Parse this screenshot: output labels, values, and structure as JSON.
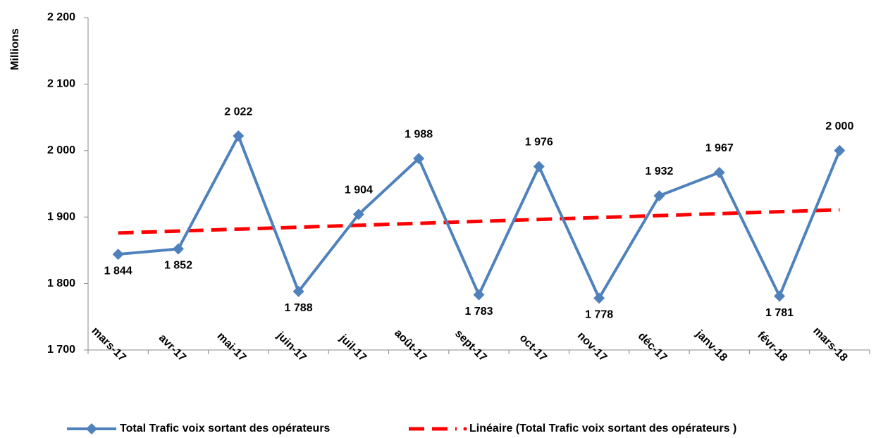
{
  "chart_data": {
    "type": "line",
    "y_label": "Millions",
    "categories": [
      "mars-17",
      "avr-17",
      "mai-17",
      "juin-17",
      "juil-17",
      "août-17",
      "sept-17",
      "oct-17",
      "nov-17",
      "déc-17",
      "janv-18",
      "févr-18",
      "mars-18"
    ],
    "series": [
      {
        "name": "Total Trafic voix sortant des opérateurs",
        "color": "#4f81bd",
        "values": [
          1844,
          1852,
          2022,
          1788,
          1904,
          1988,
          1783,
          1976,
          1778,
          1932,
          1967,
          1781,
          2000
        ],
        "value_labels": [
          "1 844",
          "1 852",
          "2 022",
          "1 788",
          "1 904",
          "1 988",
          "1 783",
          "1 976",
          "1 778",
          "1 932",
          "1 967",
          "1 781",
          "2 000"
        ]
      },
      {
        "name": "Linéaire (Total Trafic voix sortant des opérateurs )",
        "color": "#ff0000",
        "dashed": true,
        "values": [
          1876.0,
          1878.9,
          1881.8,
          1884.7,
          1887.6,
          1890.5,
          1893.5,
          1896.4,
          1899.3,
          1902.2,
          1905.1,
          1908.0,
          1910.9
        ]
      }
    ],
    "ylim": [
      1700,
      2200
    ],
    "yticks": [
      {
        "value": 1700,
        "label": "1 700"
      },
      {
        "value": 1800,
        "label": "1 800"
      },
      {
        "value": 1900,
        "label": "1 900"
      },
      {
        "value": 2000,
        "label": "2 000"
      },
      {
        "value": 2100,
        "label": "2 100"
      },
      {
        "value": 2200,
        "label": "2 200"
      }
    ],
    "grid": false,
    "legend": "bottom"
  }
}
